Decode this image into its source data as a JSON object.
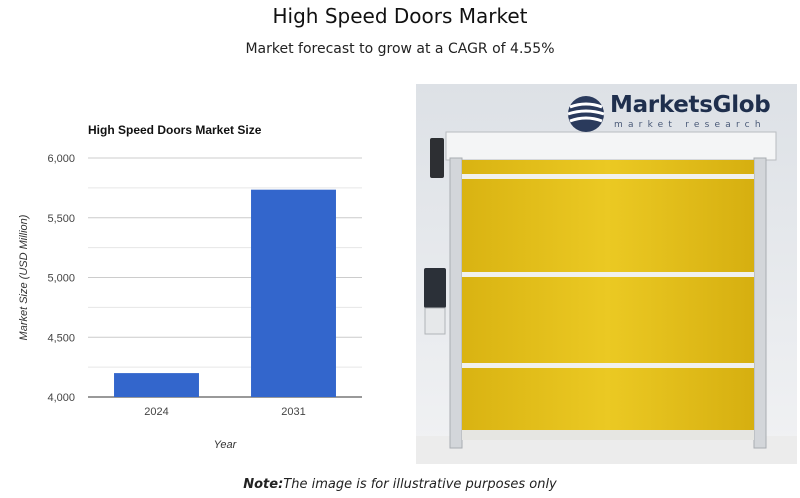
{
  "header": {
    "title": "High Speed Doors Market",
    "subtitle": "Market forecast to grow at a CAGR of 4.55%"
  },
  "chart_data": {
    "type": "bar",
    "title": "High Speed Doors Market Size",
    "xlabel": "Year",
    "ylabel": "Market Size (USD Million)",
    "categories": [
      "2024",
      "2031"
    ],
    "values": [
      4200,
      5735
    ],
    "ylim": [
      4000,
      6000
    ],
    "yticks": [
      4000,
      4500,
      5000,
      5500,
      6000
    ],
    "ytick_labels": [
      "4,000",
      "4,500",
      "5,000",
      "5,500",
      "6,000"
    ],
    "bar_color": "#3366cc",
    "grid": true,
    "legend": "none"
  },
  "logo": {
    "name": "MarketsGlob",
    "tagline": "market research"
  },
  "footnote": {
    "label": "Note:",
    "text": "The image is for illustrative purposes only"
  },
  "photo": {
    "icon": "high-speed-door-photo",
    "door_color": "#e8c21e"
  }
}
